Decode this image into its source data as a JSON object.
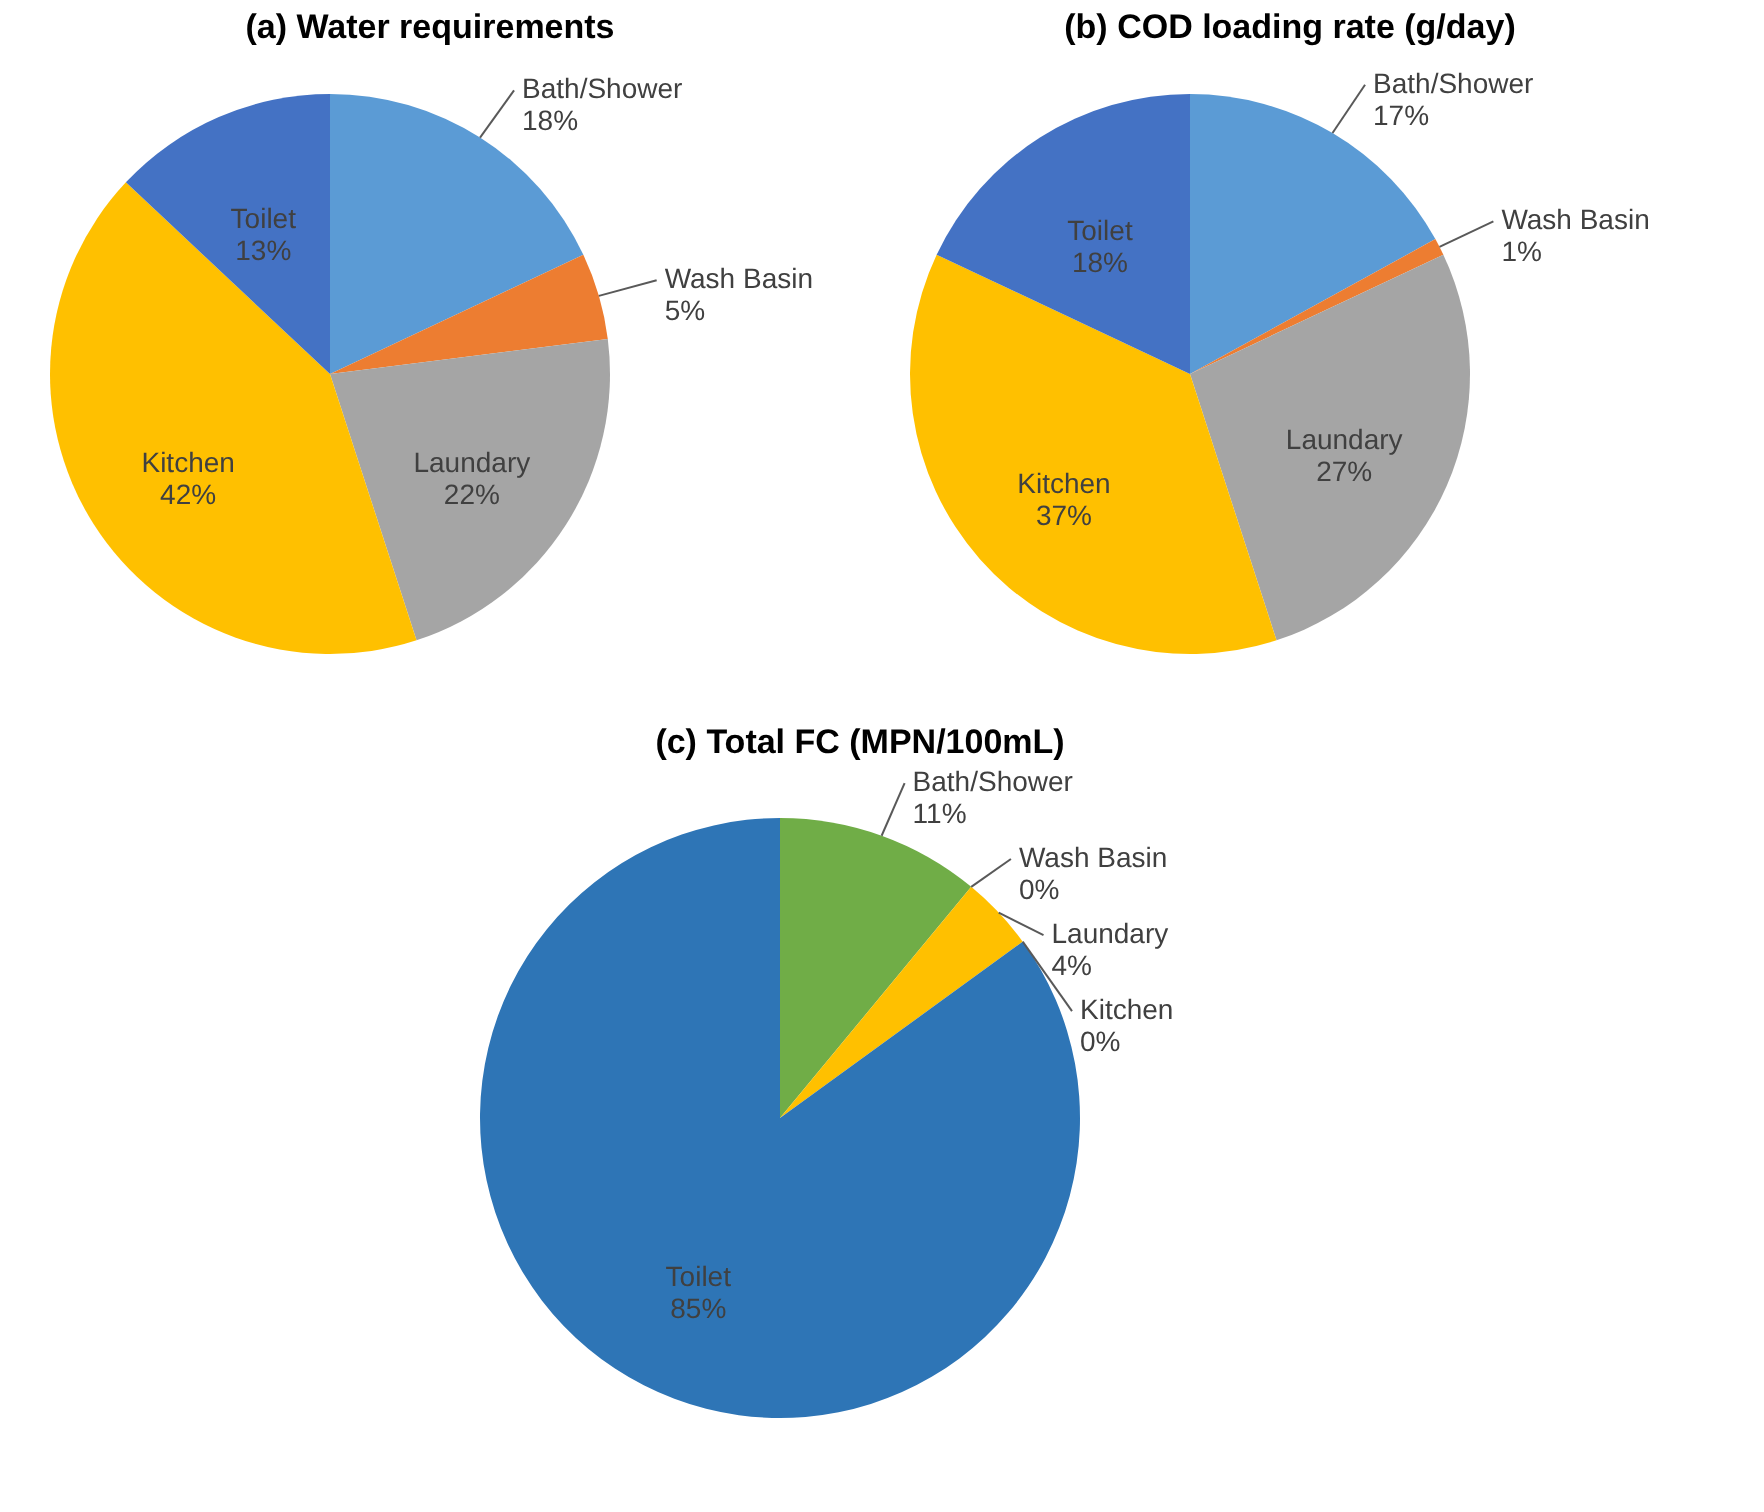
{
  "chart_data": [
    {
      "type": "pie",
      "title": "(a) Water requirements",
      "categories": [
        "Bath/Shower",
        "Wash Basin",
        "Laundary",
        "Kitchen",
        "Toilet"
      ],
      "values": [
        18,
        5,
        22,
        42,
        13
      ],
      "value_labels": [
        "18%",
        "5%",
        "22%",
        "42%",
        "13%"
      ],
      "colors": [
        "#5b9bd5",
        "#ed7d31",
        "#a5a5a5",
        "#ffc000",
        "#4472c4"
      ]
    },
    {
      "type": "pie",
      "title": "(b) COD loading rate (g/day)",
      "categories": [
        "Bath/Shower",
        "Wash Basin",
        "Laundary",
        "Kitchen",
        "Toilet"
      ],
      "values": [
        17,
        1,
        27,
        37,
        18
      ],
      "value_labels": [
        "17%",
        "1%",
        "27%",
        "37%",
        "18%"
      ],
      "colors": [
        "#5b9bd5",
        "#ed7d31",
        "#a5a5a5",
        "#ffc000",
        "#4472c4"
      ]
    },
    {
      "type": "pie",
      "title": "(c) Total FC (MPN/100mL)",
      "categories": [
        "Bath/Shower",
        "Wash Basin",
        "Laundary",
        "Kitchen",
        "Toilet"
      ],
      "values": [
        11,
        0,
        4,
        0,
        85
      ],
      "value_labels": [
        "11%",
        "0%",
        "4%",
        "0%",
        "85%"
      ],
      "colors": [
        "#70ad47",
        "#4472c4",
        "#ffc000",
        "#a5a5a5",
        "#2e75b6"
      ]
    }
  ]
}
